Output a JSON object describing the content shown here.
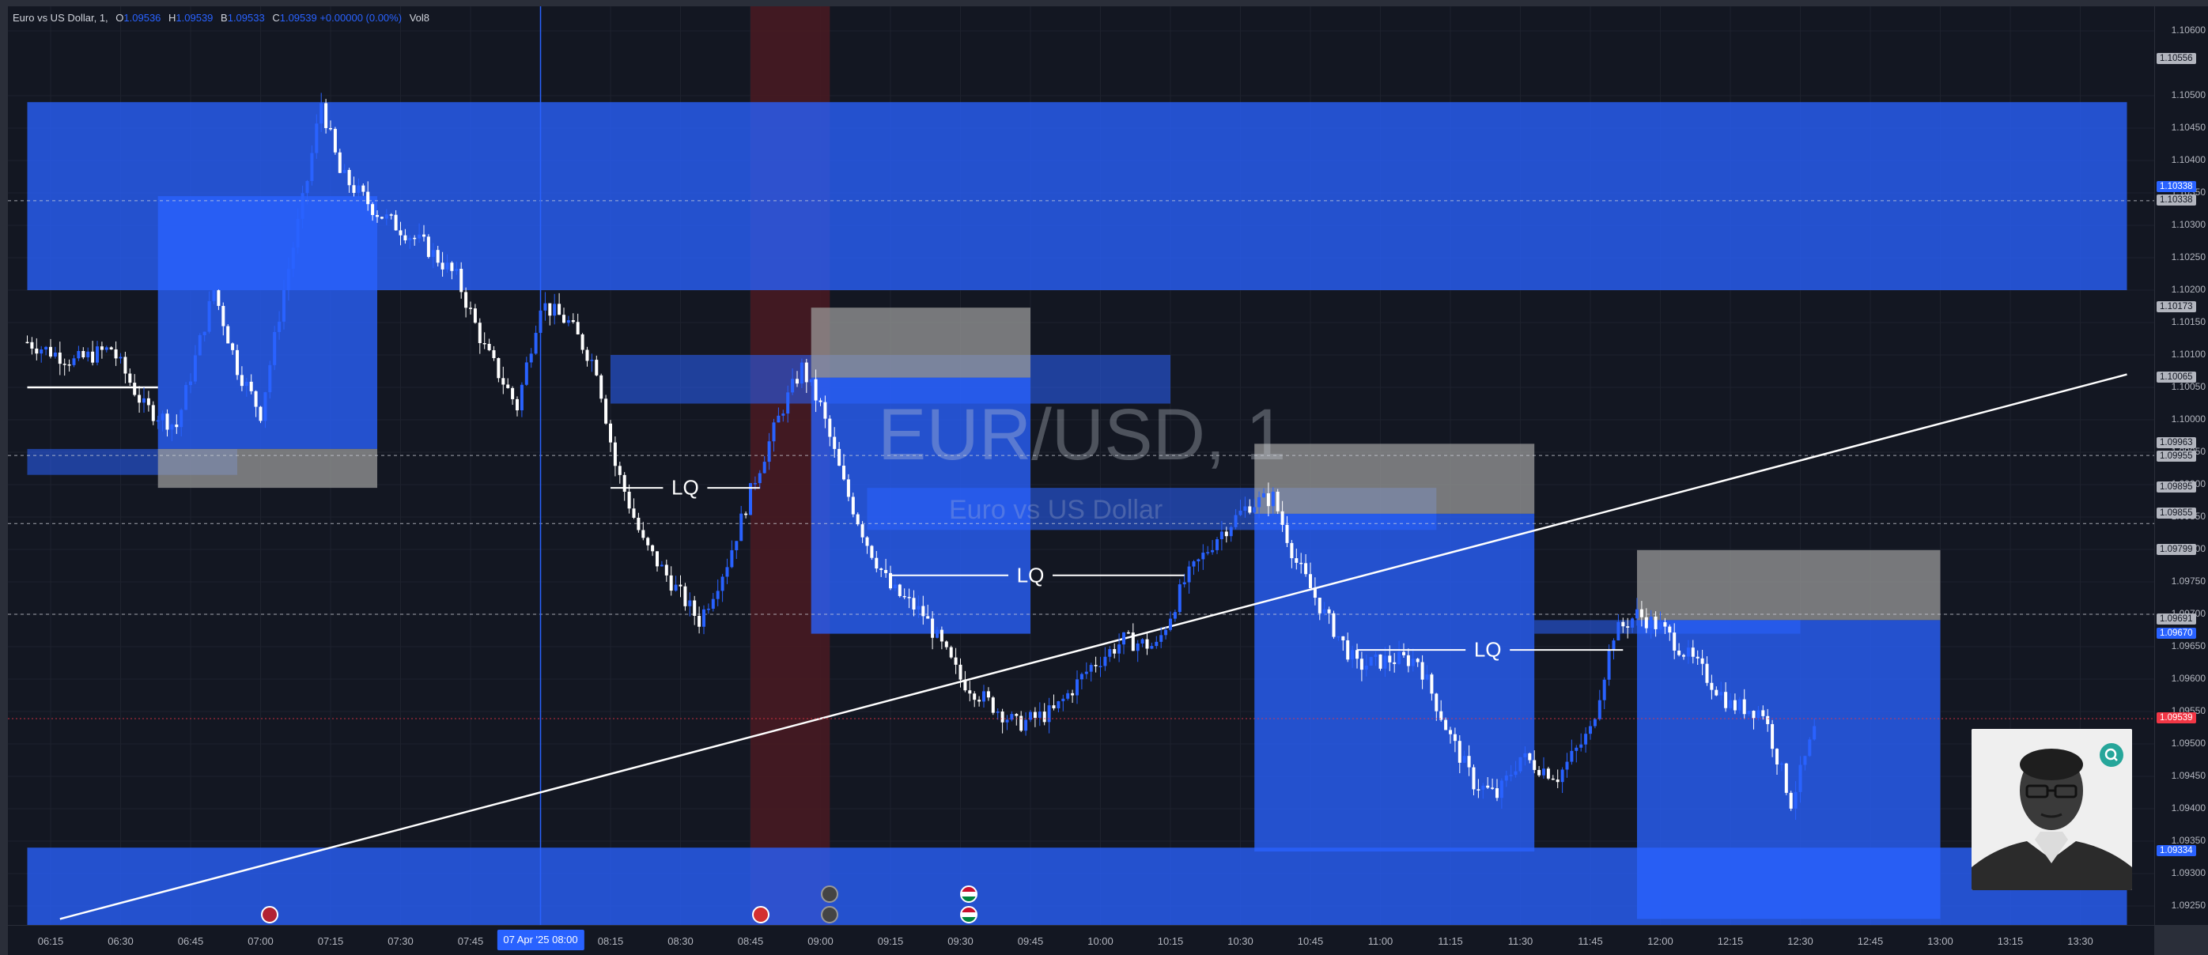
{
  "legend": {
    "title": "Euro vs US Dollar, 1,",
    "o_label": "O",
    "o_value": "1.09536",
    "h_label": "H",
    "h_value": "1.09539",
    "l_label": "B",
    "l_value": "1.09533",
    "c_label": "C",
    "c_value": "1.09539 +0.00000 (0.00%)",
    "vol": "Vol8"
  },
  "watermark": {
    "symbol": "EUR/USD, 1",
    "name": "Euro vs US Dollar"
  },
  "colors": {
    "background": "#131722",
    "zone_blue": "#2962ff",
    "zone_grey": "#9e9e9e",
    "candle": "#ffffff",
    "candle_blue": "#2962ff",
    "last_price": "#f23645",
    "session_red": "#4a1a22",
    "accent": "#26a69a"
  },
  "price_axis": {
    "ticks": [
      "1.10600",
      "1.10500",
      "1.10450",
      "1.10400",
      "1.10350",
      "1.10300",
      "1.10250",
      "1.10200",
      "1.10150",
      "1.10100",
      "1.10050",
      "1.10000",
      "1.09950",
      "1.09900",
      "1.09850",
      "1.09800",
      "1.09750",
      "1.09700",
      "1.09650",
      "1.09600",
      "1.09550",
      "1.09500",
      "1.09450",
      "1.09400",
      "1.09350",
      "1.09300",
      "1.09250"
    ],
    "tags": [
      {
        "value": "1.10556",
        "price": 1.10556,
        "bg": "#b2b5be",
        "fg": "#131722"
      },
      {
        "value": "1.10338",
        "price": 1.10358,
        "bg": "#2962ff",
        "fg": "#ffffff"
      },
      {
        "value": "1.10338",
        "price": 1.10338,
        "bg": "#b2b5be",
        "fg": "#131722"
      },
      {
        "value": "1.10173",
        "price": 1.10173,
        "bg": "#b2b5be",
        "fg": "#131722"
      },
      {
        "value": "1.10065",
        "price": 1.10065,
        "bg": "#b2b5be",
        "fg": "#131722"
      },
      {
        "value": "1.09963",
        "price": 1.09963,
        "bg": "#b2b5be",
        "fg": "#131722"
      },
      {
        "value": "1.09955",
        "price": 1.09943,
        "bg": "#b2b5be",
        "fg": "#131722"
      },
      {
        "value": "1.09895",
        "price": 1.09895,
        "bg": "#b2b5be",
        "fg": "#131722"
      },
      {
        "value": "1.09855",
        "price": 1.09855,
        "bg": "#b2b5be",
        "fg": "#131722"
      },
      {
        "value": "1.09799",
        "price": 1.09799,
        "bg": "#b2b5be",
        "fg": "#131722"
      },
      {
        "value": "1.09691",
        "price": 1.09691,
        "bg": "#b2b5be",
        "fg": "#131722"
      },
      {
        "value": "1.09670",
        "price": 1.0967,
        "bg": "#2962ff",
        "fg": "#ffffff"
      },
      {
        "value": "1.09539",
        "price": 1.09539,
        "bg": "#f23645",
        "fg": "#ffffff"
      },
      {
        "value": "1.09334",
        "price": 1.09334,
        "bg": "#2962ff",
        "fg": "#ffffff"
      }
    ]
  },
  "time_axis": {
    "labels": [
      "06:15",
      "06:30",
      "06:45",
      "07:00",
      "07:15",
      "07:30",
      "07:45",
      "08:15",
      "08:30",
      "08:45",
      "09:00",
      "09:15",
      "09:30",
      "09:45",
      "10:00",
      "10:15",
      "10:30",
      "10:45",
      "11:00",
      "11:15",
      "11:30",
      "11:45",
      "12:00",
      "12:15",
      "12:30",
      "12:45",
      "13:00",
      "13:15",
      "13:30"
    ],
    "cursor_label": "07 Apr '25   08:00"
  },
  "annotations": {
    "lq_labels": [
      "LQ",
      "LQ",
      "LQ"
    ]
  },
  "chart_data": {
    "type": "candlestick",
    "title": "Euro vs US Dollar, 1",
    "symbol": "EUR/USD",
    "timeframe": "1",
    "x_range": [
      "06:10",
      "13:40"
    ],
    "ylim": [
      1.0923,
      1.1063
    ],
    "last_price": 1.09539,
    "grid": true,
    "close_path": [
      [
        "06:10",
        1.1012
      ],
      [
        "06:20",
        1.1009
      ],
      [
        "06:28",
        1.1011
      ],
      [
        "06:35",
        1.1002
      ],
      [
        "06:42",
        1.0999
      ],
      [
        "06:50",
        1.102
      ],
      [
        "06:55",
        1.1008
      ],
      [
        "07:00",
        1.1001
      ],
      [
        "07:05",
        1.102
      ],
      [
        "07:10",
        1.1037
      ],
      [
        "07:13",
        1.1049
      ],
      [
        "07:17",
        1.1038
      ],
      [
        "07:25",
        1.1032
      ],
      [
        "07:35",
        1.1027
      ],
      [
        "07:42",
        1.1022
      ],
      [
        "07:48",
        1.1011
      ],
      [
        "07:55",
        1.1002
      ],
      [
        "08:00",
        1.1018
      ],
      [
        "08:06",
        1.1015
      ],
      [
        "08:12",
        1.1008
      ],
      [
        "08:16",
        1.0993
      ],
      [
        "08:22",
        1.0981
      ],
      [
        "08:28",
        1.0975
      ],
      [
        "08:34",
        1.0969
      ],
      [
        "08:40",
        1.0978
      ],
      [
        "08:46",
        1.0991
      ],
      [
        "08:52",
        1.1002
      ],
      [
        "08:56",
        1.1008
      ],
      [
        "09:00",
        1.1002
      ],
      [
        "09:05",
        1.099
      ],
      [
        "09:10",
        1.0981
      ],
      [
        "09:15",
        1.0974
      ],
      [
        "09:22",
        1.097
      ],
      [
        "09:30",
        1.096
      ],
      [
        "09:35",
        1.0957
      ],
      [
        "09:42",
        1.0953
      ],
      [
        "09:50",
        1.0955
      ],
      [
        "09:58",
        1.0962
      ],
      [
        "10:05",
        1.0966
      ],
      [
        "10:12",
        1.0965
      ],
      [
        "10:18",
        1.0975
      ],
      [
        "10:25",
        1.0982
      ],
      [
        "10:32",
        1.0987
      ],
      [
        "10:37",
        1.0988
      ],
      [
        "10:42",
        1.0978
      ],
      [
        "10:48",
        1.097
      ],
      [
        "10:55",
        1.0962
      ],
      [
        "11:02",
        1.0963
      ],
      [
        "11:08",
        1.0963
      ],
      [
        "11:15",
        1.0951
      ],
      [
        "11:20",
        1.0944
      ],
      [
        "11:25",
        1.0942
      ],
      [
        "11:30",
        1.0948
      ],
      [
        "11:38",
        1.0945
      ],
      [
        "11:45",
        1.0952
      ],
      [
        "11:50",
        1.0967
      ],
      [
        "11:55",
        1.097
      ],
      [
        "12:00",
        1.0968
      ],
      [
        "12:08",
        1.0962
      ],
      [
        "12:15",
        1.0956
      ],
      [
        "12:22",
        1.0955
      ],
      [
        "12:28",
        1.0941
      ],
      [
        "12:33",
        1.0952
      ]
    ],
    "zones": [
      {
        "kind": "supply",
        "color": "blue",
        "from": "06:10",
        "to": "13:40",
        "top": 1.1049,
        "bottom": 1.102
      },
      {
        "kind": "demand",
        "color": "blue",
        "from": "06:10",
        "to": "13:40",
        "top": 1.0934,
        "bottom": 1.0922
      },
      {
        "kind": "fvg",
        "color": "blue",
        "from": "06:10",
        "to": "06:55",
        "top": 1.09955,
        "bottom": 1.09915
      },
      {
        "kind": "order_block",
        "color": "blue",
        "from": "06:38",
        "to": "07:25",
        "top": 1.10345,
        "bottom": 1.09955
      },
      {
        "kind": "order_block",
        "color": "grey",
        "from": "06:38",
        "to": "07:25",
        "top": 1.09955,
        "bottom": 1.09895
      },
      {
        "kind": "fvg",
        "color": "blue",
        "from": "08:15",
        "to": "10:15",
        "top": 1.101,
        "bottom": 1.10025
      },
      {
        "kind": "order_block",
        "color": "grey",
        "from": "08:58",
        "to": "09:45",
        "top": 1.10173,
        "bottom": 1.10065
      },
      {
        "kind": "order_block",
        "color": "blue",
        "from": "08:58",
        "to": "09:45",
        "top": 1.10065,
        "bottom": 1.0967
      },
      {
        "kind": "fvg",
        "color": "blue",
        "from": "09:10",
        "to": "11:12",
        "top": 1.09895,
        "bottom": 1.0983
      },
      {
        "kind": "order_block",
        "color": "grey",
        "from": "10:33",
        "to": "11:33",
        "top": 1.09963,
        "bottom": 1.09855
      },
      {
        "kind": "order_block",
        "color": "blue",
        "from": "10:33",
        "to": "11:33",
        "top": 1.09855,
        "bottom": 1.09334
      },
      {
        "kind": "fvg",
        "color": "blue",
        "from": "11:33",
        "to": "12:30",
        "top": 1.09691,
        "bottom": 1.0967
      },
      {
        "kind": "order_block",
        "color": "grey",
        "from": "11:55",
        "to": "13:00",
        "top": 1.09799,
        "bottom": 1.09691
      },
      {
        "kind": "order_block",
        "color": "blue",
        "from": "11:55",
        "to": "13:00",
        "top": 1.09691,
        "bottom": 1.0923
      }
    ],
    "lines": [
      {
        "kind": "trendline",
        "from": [
          "06:17",
          1.0923
        ],
        "to": [
          "13:40",
          1.1007
        ]
      },
      {
        "kind": "level",
        "from": [
          "06:10",
          1.1005
        ],
        "to": [
          "06:38",
          1.1005
        ]
      }
    ],
    "lq_levels": [
      {
        "from": "08:15",
        "to": "08:47",
        "price": 1.09895,
        "label_at": "08:31"
      },
      {
        "from": "09:15",
        "to": "10:18",
        "price": 1.0976,
        "label_at": "09:45"
      },
      {
        "from": "10:55",
        "to": "11:52",
        "price": 1.09645,
        "label_at": "11:23"
      }
    ],
    "session_band": {
      "from": "08:45",
      "to": "09:02"
    },
    "cursor_time": "08:00"
  }
}
